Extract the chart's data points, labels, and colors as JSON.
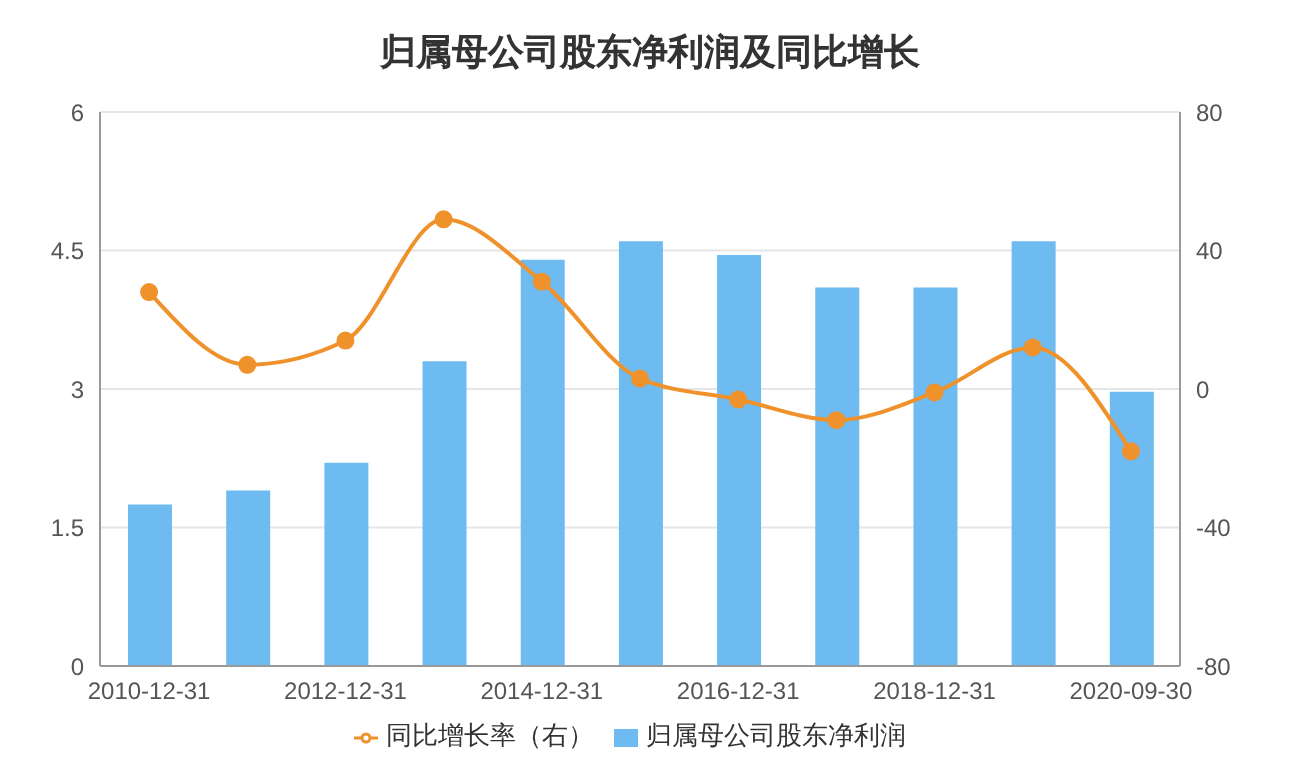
{
  "chart_data": {
    "type": "bar",
    "title": "归属母公司股东净利润及同比增长",
    "categories": [
      "2010-12-31",
      null,
      "2012-12-31",
      null,
      "2014-12-31",
      null,
      "2016-12-31",
      null,
      "2018-12-31",
      null,
      "2020-09-30"
    ],
    "series": [
      {
        "name": "归属母公司股东净利润",
        "color": "#6dbbf0",
        "values": [
          1.75,
          1.9,
          2.2,
          3.3,
          4.4,
          4.6,
          4.45,
          4.1,
          4.1,
          4.6,
          2.97
        ]
      },
      {
        "name": "同比增长率（右）",
        "type": "line",
        "axis": "y2",
        "color": "#f0922b",
        "marker": "circle",
        "values": [
          28,
          7,
          14,
          49,
          31,
          3,
          -3,
          -9,
          -1,
          12,
          -18
        ]
      }
    ],
    "ylim": [
      0,
      6
    ],
    "yticks": [
      0,
      1.5,
      3,
      4.5,
      6
    ],
    "y2lim": [
      -80,
      80
    ],
    "y2ticks": [
      -80,
      -40,
      0,
      40,
      80
    ],
    "grid": "y",
    "legend": "bottom"
  }
}
